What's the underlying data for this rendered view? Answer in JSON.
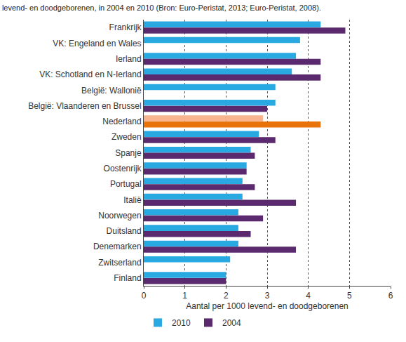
{
  "chart_data": {
    "type": "bar",
    "orientation": "horizontal",
    "title": "levend- en doodgeborenen, in 2004 en 2010 (Bron: Euro-Peristat, 2013; Euro-Peristat, 2008).",
    "x_label": "Aantal per 1000 levend- en doodgeborenen",
    "categories": [
      "Frankrijk",
      "VK: Engeland en Wales",
      "Ierland",
      "VK: Schotland en N-Ierland",
      "België: Wallonië",
      "België: Vlaanderen en Brussel",
      "Nederland",
      "Zweden",
      "Spanje",
      "Oostenrijk",
      "Portugal",
      "Italië",
      "Noorwegen",
      "Duitsland",
      "Denemarken",
      "Zwitserland",
      "Finland"
    ],
    "series": [
      {
        "name": "2010",
        "colors": [
          "#29a9e1",
          "#29a9e1",
          "#29a9e1",
          "#29a9e1",
          "#29a9e1",
          "#29a9e1",
          "#f7b48e",
          "#29a9e1",
          "#29a9e1",
          "#29a9e1",
          "#29a9e1",
          "#29a9e1",
          "#29a9e1",
          "#29a9e1",
          "#29a9e1",
          "#29a9e1",
          "#29a9e1"
        ],
        "values": [
          4.3,
          3.8,
          3.7,
          3.6,
          3.2,
          3.2,
          2.9,
          2.8,
          2.6,
          2.5,
          2.4,
          2.4,
          2.3,
          2.3,
          2.3,
          2.1,
          2.0
        ]
      },
      {
        "name": "2004",
        "colors": [
          "#5b2a6e",
          "#5b2a6e",
          "#5b2a6e",
          "#5b2a6e",
          "#5b2a6e",
          "#5b2a6e",
          "#e8730a",
          "#5b2a6e",
          "#5b2a6e",
          "#5b2a6e",
          "#5b2a6e",
          "#5b2a6e",
          "#5b2a6e",
          "#5b2a6e",
          "#5b2a6e",
          "#5b2a6e",
          "#5b2a6e"
        ],
        "values": [
          4.9,
          null,
          4.3,
          4.3,
          null,
          3.0,
          4.3,
          3.2,
          2.7,
          2.5,
          2.7,
          3.7,
          2.9,
          2.6,
          3.7,
          null,
          2.0
        ]
      }
    ],
    "xlim": [
      0,
      6
    ],
    "xticks": [
      0,
      1,
      2,
      3,
      4,
      5,
      6
    ],
    "grid": true,
    "legend": "bottom left"
  }
}
